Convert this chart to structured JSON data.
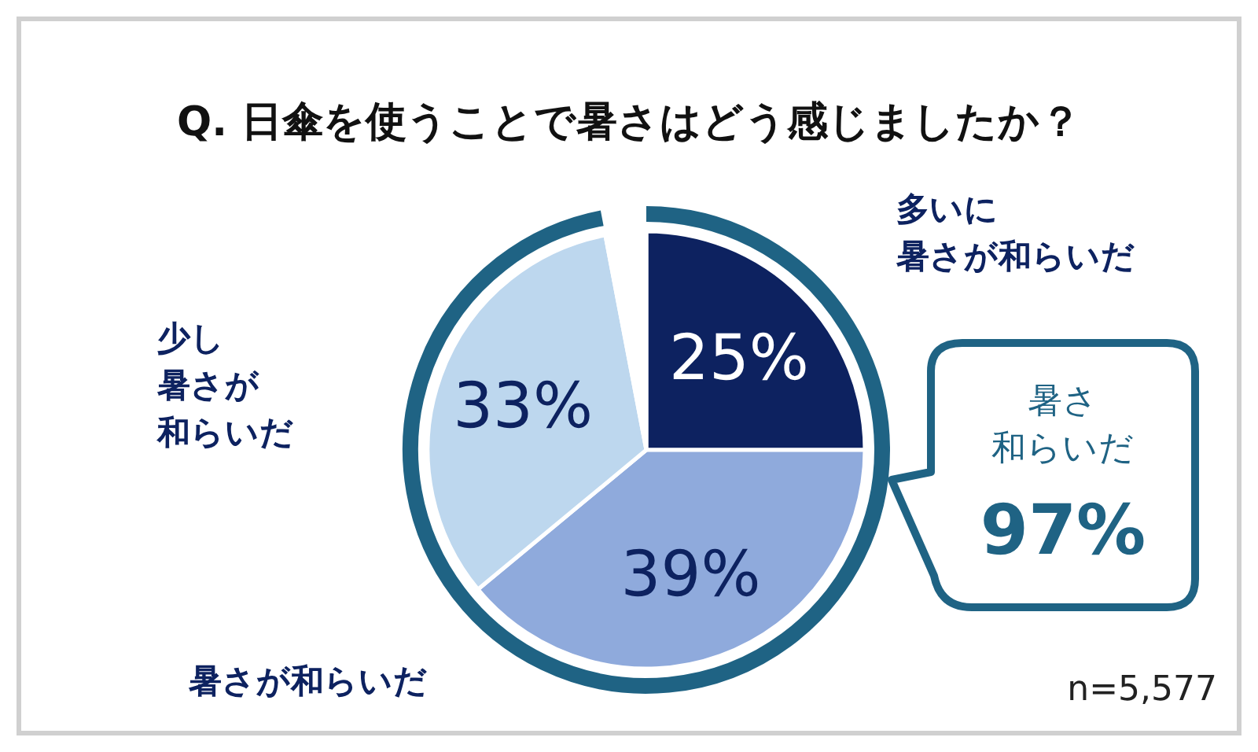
{
  "chart_data": {
    "type": "pie",
    "title": "Q. 日傘を使うことで暑さはどう感じましたか？",
    "categories": [
      "多いに暑さが和らいだ",
      "暑さが和らいだ",
      "少し暑さが和らいだ",
      null
    ],
    "values": [
      25,
      39,
      33,
      3
    ],
    "colors": [
      "#0d2260",
      "#8faadc",
      "#bdd7ee",
      "#ffffff"
    ],
    "value_labels": [
      "25%",
      "39%",
      "33%",
      null
    ],
    "annotations": [
      "暑さ和らいだ",
      "97%",
      "n=5,577"
    ]
  }
}
